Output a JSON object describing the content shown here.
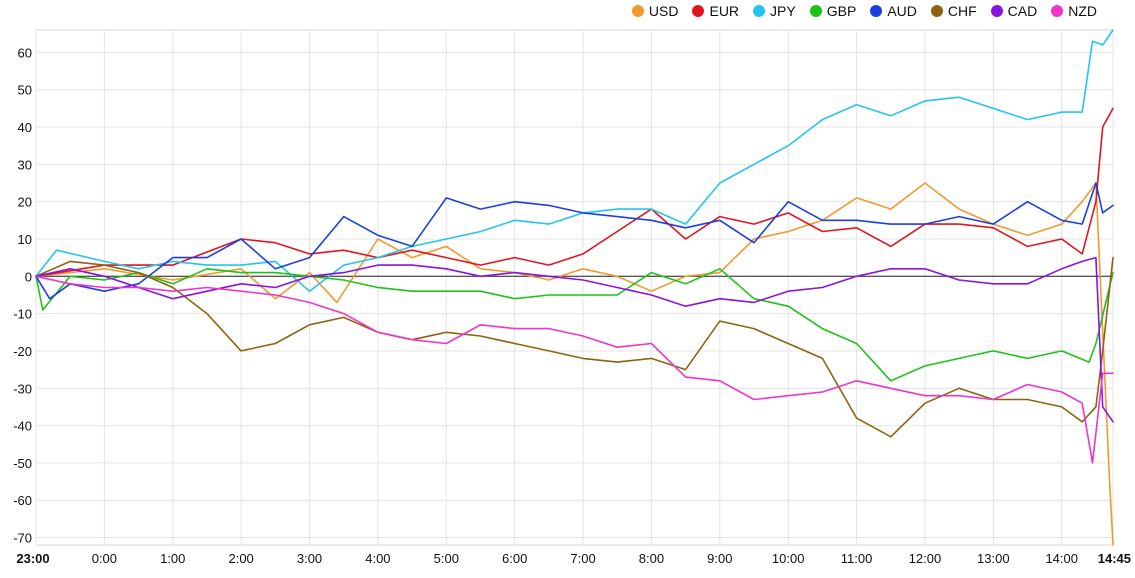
{
  "chart_data": {
    "type": "line",
    "title": "",
    "xlabel": "",
    "ylabel": "",
    "ylim": [
      -72,
      66
    ],
    "grid": true,
    "legend_position": "top-right",
    "yticks": [
      60,
      50,
      40,
      30,
      20,
      10,
      0,
      -10,
      -20,
      -30,
      -40,
      -50,
      -60,
      -70
    ],
    "xticks": [
      "23:00",
      "0:00",
      "1:00",
      "2:00",
      "3:00",
      "4:00",
      "5:00",
      "6:00",
      "7:00",
      "8:00",
      "9:00",
      "10:00",
      "11:00",
      "12:00",
      "13:00",
      "14:00",
      "14:45"
    ],
    "x_hours": [
      0,
      1,
      2,
      3,
      4,
      5,
      6,
      7,
      8,
      9,
      10,
      11,
      12,
      13,
      14,
      15,
      15.75
    ],
    "series": [
      {
        "name": "USD",
        "color": "#f29a2e",
        "points": [
          [
            0,
            0
          ],
          [
            1,
            2
          ],
          [
            2,
            -1
          ],
          [
            3,
            2
          ],
          [
            3.5,
            -6
          ],
          [
            4,
            1
          ],
          [
            4.4,
            -7
          ],
          [
            5,
            10
          ],
          [
            5.5,
            5
          ],
          [
            6,
            8
          ],
          [
            6.5,
            2
          ],
          [
            7,
            1
          ],
          [
            7.5,
            -1
          ],
          [
            8,
            2
          ],
          [
            8.5,
            0
          ],
          [
            9,
            -4
          ],
          [
            9.5,
            0
          ],
          [
            10,
            1
          ],
          [
            10.5,
            10
          ],
          [
            11,
            12
          ],
          [
            11.5,
            15
          ],
          [
            12,
            21
          ],
          [
            12.5,
            18
          ],
          [
            13,
            25
          ],
          [
            13.5,
            18
          ],
          [
            14,
            14
          ],
          [
            14.5,
            11
          ],
          [
            15,
            14
          ],
          [
            15.3,
            20
          ],
          [
            15.5,
            25
          ],
          [
            15.6,
            -15
          ],
          [
            15.7,
            -55
          ],
          [
            15.75,
            -72
          ]
        ]
      },
      {
        "name": "EUR",
        "color": "#e0161f",
        "points": [
          [
            0,
            0
          ],
          [
            1,
            3
          ],
          [
            2,
            3
          ],
          [
            3,
            10
          ],
          [
            3.5,
            9
          ],
          [
            4,
            6
          ],
          [
            4.5,
            7
          ],
          [
            5,
            5
          ],
          [
            5.5,
            7
          ],
          [
            6,
            5
          ],
          [
            6.5,
            3
          ],
          [
            7,
            5
          ],
          [
            7.5,
            3
          ],
          [
            8,
            6
          ],
          [
            8.5,
            12
          ],
          [
            9,
            18
          ],
          [
            9.5,
            10
          ],
          [
            10,
            16
          ],
          [
            10.5,
            14
          ],
          [
            11,
            17
          ],
          [
            11.5,
            12
          ],
          [
            12,
            13
          ],
          [
            12.5,
            8
          ],
          [
            13,
            14
          ],
          [
            13.5,
            14
          ],
          [
            14,
            13
          ],
          [
            14.5,
            8
          ],
          [
            15,
            10
          ],
          [
            15.3,
            6
          ],
          [
            15.5,
            20
          ],
          [
            15.6,
            40
          ],
          [
            15.75,
            45
          ]
        ]
      },
      {
        "name": "JPY",
        "color": "#24c4f0",
        "points": [
          [
            0,
            0
          ],
          [
            0.3,
            7
          ],
          [
            1,
            4
          ],
          [
            1.5,
            2
          ],
          [
            2,
            4
          ],
          [
            2.5,
            3
          ],
          [
            3,
            3
          ],
          [
            3.5,
            4
          ],
          [
            4,
            -4
          ],
          [
            4.5,
            3
          ],
          [
            5,
            5
          ],
          [
            5.5,
            8
          ],
          [
            6,
            10
          ],
          [
            6.5,
            12
          ],
          [
            7,
            15
          ],
          [
            7.5,
            14
          ],
          [
            8,
            17
          ],
          [
            8.5,
            18
          ],
          [
            9,
            18
          ],
          [
            9.5,
            14
          ],
          [
            10,
            25
          ],
          [
            10.5,
            30
          ],
          [
            11,
            35
          ],
          [
            11.5,
            42
          ],
          [
            12,
            46
          ],
          [
            12.5,
            43
          ],
          [
            13,
            47
          ],
          [
            13.5,
            48
          ],
          [
            14,
            45
          ],
          [
            14.5,
            42
          ],
          [
            15,
            44
          ],
          [
            15.3,
            44
          ],
          [
            15.45,
            63
          ],
          [
            15.6,
            62
          ],
          [
            15.75,
            66
          ]
        ]
      },
      {
        "name": "GBP",
        "color": "#1fc219",
        "points": [
          [
            0,
            0
          ],
          [
            0.1,
            -9
          ],
          [
            0.5,
            0
          ],
          [
            1,
            -1
          ],
          [
            1.5,
            1
          ],
          [
            2,
            -2
          ],
          [
            2.5,
            2
          ],
          [
            3,
            1
          ],
          [
            3.5,
            1
          ],
          [
            4,
            0
          ],
          [
            4.5,
            -1
          ],
          [
            5,
            -3
          ],
          [
            5.5,
            -4
          ],
          [
            6,
            -4
          ],
          [
            6.5,
            -4
          ],
          [
            7,
            -6
          ],
          [
            7.5,
            -5
          ],
          [
            8,
            -5
          ],
          [
            8.5,
            -5
          ],
          [
            9,
            1
          ],
          [
            9.5,
            -2
          ],
          [
            10,
            2
          ],
          [
            10.5,
            -6
          ],
          [
            11,
            -8
          ],
          [
            11.5,
            -14
          ],
          [
            12,
            -18
          ],
          [
            12.5,
            -28
          ],
          [
            13,
            -24
          ],
          [
            13.5,
            -22
          ],
          [
            14,
            -20
          ],
          [
            14.5,
            -22
          ],
          [
            15,
            -20
          ],
          [
            15.4,
            -23
          ],
          [
            15.5,
            -18
          ],
          [
            15.75,
            1
          ]
        ]
      },
      {
        "name": "AUD",
        "color": "#1b3fe0",
        "points": [
          [
            0,
            0
          ],
          [
            0.2,
            -6
          ],
          [
            0.5,
            -2
          ],
          [
            1,
            -4
          ],
          [
            1.5,
            -2
          ],
          [
            2,
            5
          ],
          [
            2.5,
            5
          ],
          [
            3,
            10
          ],
          [
            3.5,
            2
          ],
          [
            4,
            5
          ],
          [
            4.5,
            16
          ],
          [
            5,
            11
          ],
          [
            5.5,
            8
          ],
          [
            6,
            21
          ],
          [
            6.5,
            18
          ],
          [
            7,
            20
          ],
          [
            7.5,
            19
          ],
          [
            8,
            17
          ],
          [
            8.5,
            16
          ],
          [
            9,
            15
          ],
          [
            9.5,
            13
          ],
          [
            10,
            15
          ],
          [
            10.5,
            9
          ],
          [
            11,
            20
          ],
          [
            11.5,
            15
          ],
          [
            12,
            15
          ],
          [
            12.5,
            14
          ],
          [
            13,
            14
          ],
          [
            13.5,
            16
          ],
          [
            14,
            14
          ],
          [
            14.5,
            20
          ],
          [
            15,
            15
          ],
          [
            15.3,
            14
          ],
          [
            15.5,
            25
          ],
          [
            15.6,
            17
          ],
          [
            15.75,
            19
          ]
        ]
      },
      {
        "name": "CHF",
        "color": "#8f6310",
        "points": [
          [
            0,
            0
          ],
          [
            0.5,
            4
          ],
          [
            1,
            3
          ],
          [
            1.5,
            1
          ],
          [
            2,
            -3
          ],
          [
            2.5,
            -10
          ],
          [
            3,
            -20
          ],
          [
            3.5,
            -18
          ],
          [
            4,
            -13
          ],
          [
            4.5,
            -11
          ],
          [
            5,
            -15
          ],
          [
            5.5,
            -17
          ],
          [
            6,
            -15
          ],
          [
            6.5,
            -16
          ],
          [
            7,
            -18
          ],
          [
            7.5,
            -20
          ],
          [
            8,
            -22
          ],
          [
            8.5,
            -23
          ],
          [
            9,
            -22
          ],
          [
            9.5,
            -25
          ],
          [
            10,
            -12
          ],
          [
            10.5,
            -14
          ],
          [
            11,
            -18
          ],
          [
            11.5,
            -22
          ],
          [
            12,
            -38
          ],
          [
            12.5,
            -43
          ],
          [
            13,
            -34
          ],
          [
            13.5,
            -30
          ],
          [
            14,
            -33
          ],
          [
            14.5,
            -33
          ],
          [
            15,
            -35
          ],
          [
            15.3,
            -39
          ],
          [
            15.5,
            -35
          ],
          [
            15.6,
            -20
          ],
          [
            15.75,
            5
          ]
        ]
      },
      {
        "name": "CAD",
        "color": "#8a13e0",
        "points": [
          [
            0,
            0
          ],
          [
            0.5,
            2
          ],
          [
            1,
            0
          ],
          [
            1.5,
            -3
          ],
          [
            2,
            -6
          ],
          [
            2.5,
            -4
          ],
          [
            3,
            -2
          ],
          [
            3.5,
            -3
          ],
          [
            4,
            0
          ],
          [
            4.5,
            1
          ],
          [
            5,
            3
          ],
          [
            5.5,
            3
          ],
          [
            6,
            2
          ],
          [
            6.5,
            0
          ],
          [
            7,
            1
          ],
          [
            7.5,
            0
          ],
          [
            8,
            -1
          ],
          [
            8.5,
            -3
          ],
          [
            9,
            -5
          ],
          [
            9.5,
            -8
          ],
          [
            10,
            -6
          ],
          [
            10.5,
            -7
          ],
          [
            11,
            -4
          ],
          [
            11.5,
            -3
          ],
          [
            12,
            0
          ],
          [
            12.5,
            2
          ],
          [
            13,
            2
          ],
          [
            13.5,
            -1
          ],
          [
            14,
            -2
          ],
          [
            14.5,
            -2
          ],
          [
            15,
            2
          ],
          [
            15.3,
            4
          ],
          [
            15.5,
            5
          ],
          [
            15.6,
            -35
          ],
          [
            15.75,
            -39
          ]
        ]
      },
      {
        "name": "NZD",
        "color": "#ef34c8",
        "points": [
          [
            0,
            0
          ],
          [
            0.5,
            -2
          ],
          [
            1,
            -3
          ],
          [
            1.5,
            -3
          ],
          [
            2,
            -4
          ],
          [
            2.5,
            -3
          ],
          [
            3,
            -4
          ],
          [
            3.5,
            -5
          ],
          [
            4,
            -7
          ],
          [
            4.5,
            -10
          ],
          [
            5,
            -15
          ],
          [
            5.5,
            -17
          ],
          [
            6,
            -18
          ],
          [
            6.5,
            -13
          ],
          [
            7,
            -14
          ],
          [
            7.5,
            -14
          ],
          [
            8,
            -16
          ],
          [
            8.5,
            -19
          ],
          [
            9,
            -18
          ],
          [
            9.5,
            -27
          ],
          [
            10,
            -28
          ],
          [
            10.5,
            -33
          ],
          [
            11,
            -32
          ],
          [
            11.5,
            -31
          ],
          [
            12,
            -28
          ],
          [
            12.5,
            -30
          ],
          [
            13,
            -32
          ],
          [
            13.5,
            -32
          ],
          [
            14,
            -33
          ],
          [
            14.5,
            -29
          ],
          [
            15,
            -31
          ],
          [
            15.3,
            -34
          ],
          [
            15.45,
            -50
          ],
          [
            15.6,
            -26
          ],
          [
            15.75,
            -26
          ]
        ]
      }
    ]
  }
}
